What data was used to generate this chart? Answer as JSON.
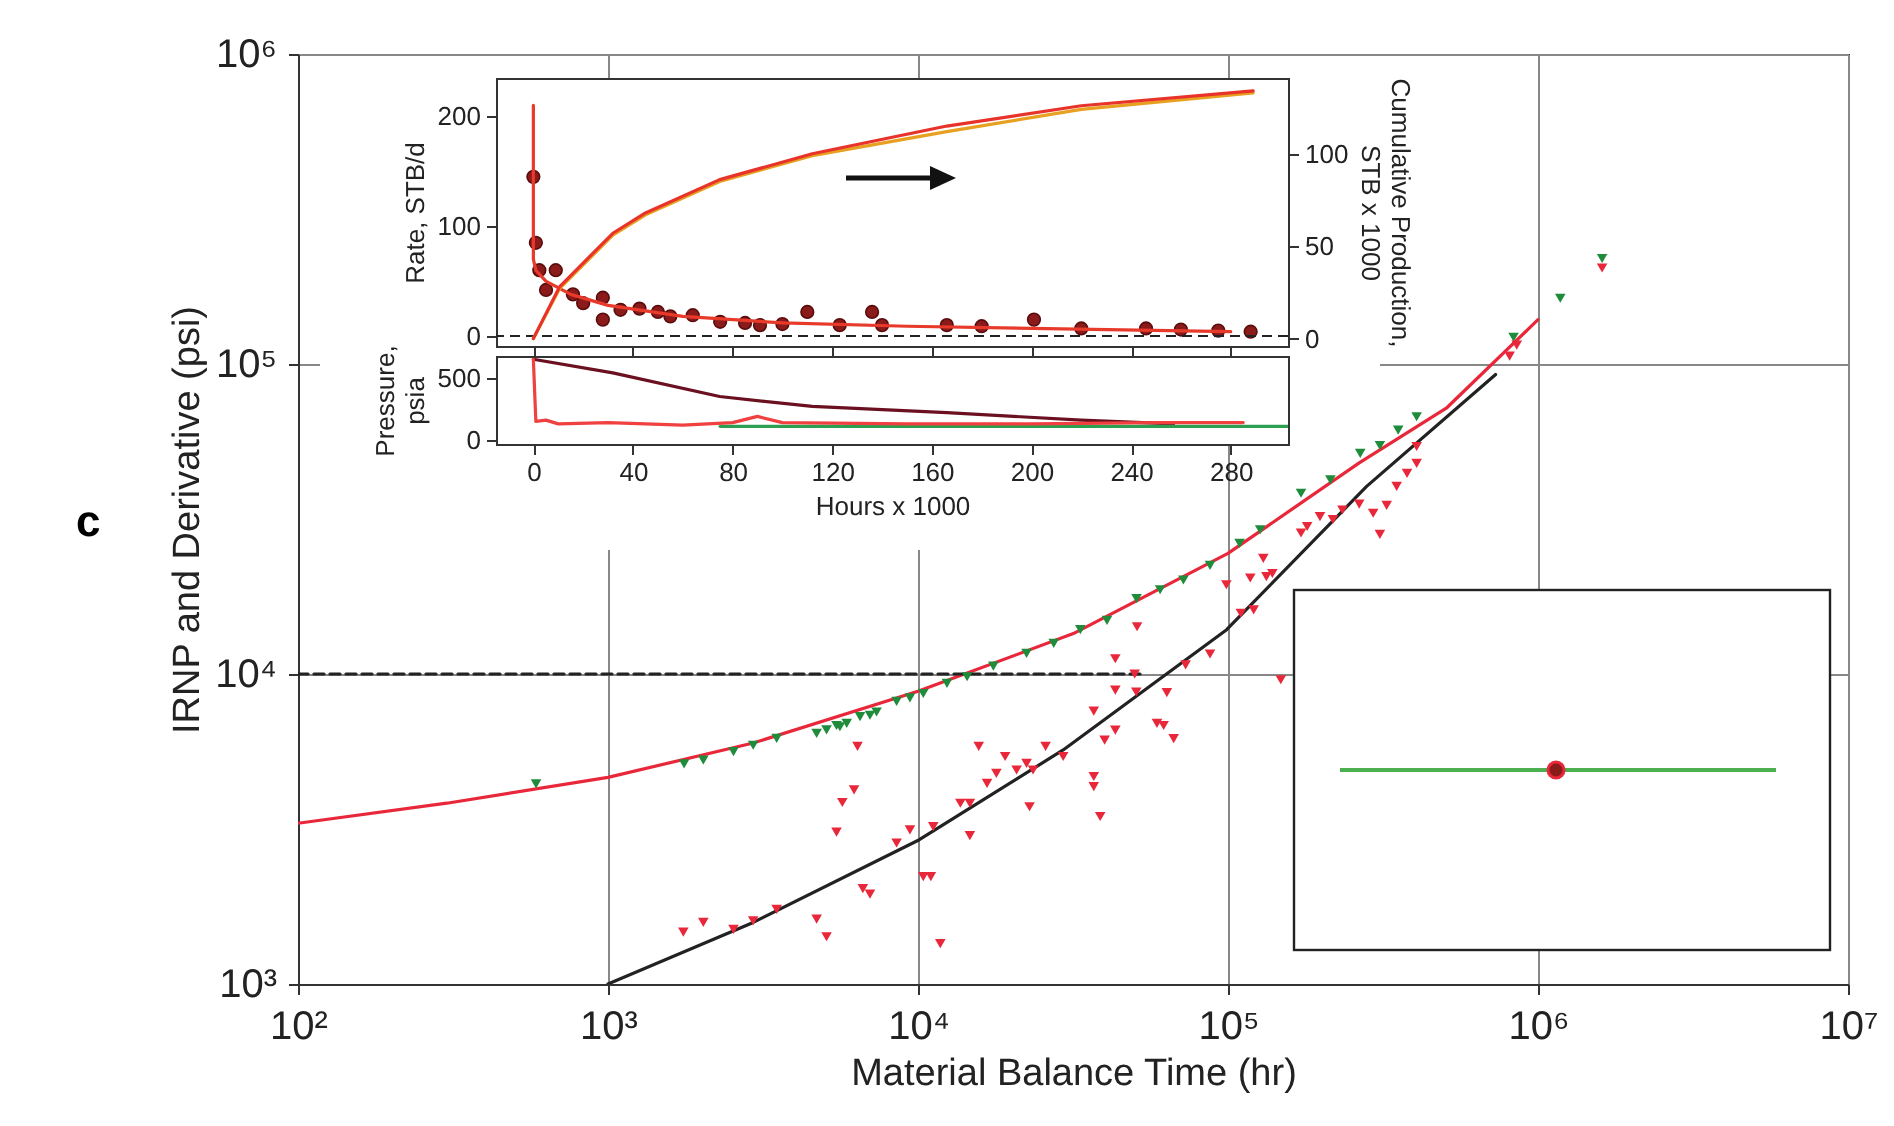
{
  "chart_data": [
    {
      "type": "scatter",
      "xlabel": "Material Balance Time (hr)",
      "ylabel": "IRNP and Derivative (psi)",
      "log": "xy",
      "grid": true,
      "annotations": [
        "c"
      ],
      "xlim": [
        100,
        10000000
      ],
      "ylim": [
        1000,
        1000000
      ],
      "xticks": [
        {
          "value": 100,
          "label": "10²"
        },
        {
          "value": 1000,
          "label": "10³"
        },
        {
          "value": 10000,
          "label": "10⁴"
        },
        {
          "value": 100000,
          "label": "10⁵"
        },
        {
          "value": 1000000,
          "label": "10⁶"
        },
        {
          "value": 10000000,
          "label": "10⁷"
        }
      ],
      "yticks": [
        {
          "value": 1000,
          "label": "10³"
        },
        {
          "value": 10000,
          "label": "10⁴"
        },
        {
          "value": 100000,
          "label": "10⁵"
        },
        {
          "value": 1000000,
          "label": "10⁶"
        }
      ],
      "series": [
        {
          "type": "line",
          "color": "#e8283a",
          "x": [
            100,
            302,
            1000,
            2940,
            10000,
            31700,
            100000,
            265000,
            506000,
            1000000
          ],
          "values": [
            3300,
            3830,
            4640,
            5990,
            8800,
            13500,
            24500,
            48000,
            72000,
            139000
          ]
        },
        {
          "type": "line",
          "color": "#222222",
          "x": [
            1000,
            2940,
            10100,
            29400,
            99000,
            280000,
            730000
          ],
          "values": [
            1000,
            1580,
            2920,
            5690,
            13900,
            40300,
            92500
          ]
        },
        {
          "type": "line",
          "color": "#222222",
          "line_style": "dashed",
          "x": [
            100,
            53000
          ],
          "values": [
            10000,
            10000
          ]
        },
        {
          "marker": "triangle",
          "color": "#1e8c3a",
          "x": [
            586,
            1760,
            2030,
            2540,
            2940,
            3500,
            4710,
            5070,
            5460,
            5600,
            5890,
            6500,
            7000,
            7350,
            8530,
            9420,
            10400,
            12400,
            14400,
            17500,
            22400,
            27400,
            33400,
            40700,
            50700,
            60400,
            71800,
            87500,
            109000,
            127000,
            172000,
            214000,
            267000,
            309000,
            354000,
            406000,
            834000,
            1180000,
            1610000
          ],
          "values": [
            4420,
            5130,
            5280,
            5620,
            5890,
            6200,
            6430,
            6600,
            6820,
            6760,
            6930,
            7290,
            7360,
            7540,
            8160,
            8370,
            8650,
            9330,
            9800,
            10600,
            11650,
            12550,
            13900,
            14900,
            17500,
            18700,
            20100,
            22400,
            26400,
            29200,
            38300,
            42300,
            51500,
            54600,
            61200,
            67600,
            122000,
            163000,
            219000
          ]
        },
        {
          "marker": "triangle",
          "color": "#e8283a",
          "x": [
            1750,
            2030,
            2540,
            2940,
            3500,
            4710,
            5070,
            5460,
            5700,
            6220,
            6380,
            6640,
            7000,
            8530,
            9420,
            10400,
            11000,
            11200,
            11800,
            13700,
            14700,
            14700,
            15700,
            16700,
            17900,
            19100,
            20800,
            22400,
            22900,
            23500,
            25800,
            29400,
            36900,
            36900,
            36900,
            38700,
            40000,
            43300,
            43300,
            43300,
            50000,
            50600,
            50900,
            59000,
            62000,
            63500,
            66800,
            73000,
            87500,
            98800,
            110000,
            118000,
            121000,
            130000,
            133000,
            139000,
            148000,
            172000,
            180000,
            198000,
            218000,
            234000,
            265000,
            294000,
            309000,
            325000,
            350000,
            378000,
            406000,
            406000,
            810000,
            854000,
            1610000
          ],
          "values": [
            1470,
            1580,
            1500,
            1600,
            1740,
            1620,
            1420,
            3090,
            3850,
            4230,
            5840,
            2030,
            1950,
            2850,
            3140,
            2220,
            2220,
            3220,
            1350,
            3830,
            3830,
            3010,
            5840,
            4440,
            4780,
            5420,
            4900,
            5150,
            3730,
            4900,
            5840,
            5420,
            7590,
            4670,
            4330,
            3470,
            6120,
            8870,
            11200,
            6590,
            10000,
            8750,
            14200,
            6930,
            6820,
            8710,
            6190,
            10700,
            11600,
            19400,
            15700,
            20400,
            16100,
            23600,
            20600,
            21100,
            9580,
            28500,
            29900,
            32200,
            31500,
            33800,
            35300,
            33000,
            28200,
            35000,
            40300,
            44400,
            47800,
            54200,
            106000,
            115000,
            204000
          ]
        }
      ]
    },
    {
      "type": "scatter",
      "ylabel": "Rate, STB/d",
      "y2label": "Cumulative Production, STB x 1000",
      "tick_labels": "y",
      "xlim": [
        -15,
        303
      ],
      "xticks": [
        0,
        40,
        80,
        120,
        160,
        200,
        240,
        280
      ],
      "ylim": [
        -9,
        235
      ],
      "yticks": [
        0,
        100,
        200
      ],
      "y2lim": [
        -4,
        141
      ],
      "y2ticks": [
        0,
        50,
        100
      ],
      "ref_lines": [
        {
          "axis": "y",
          "value": 0,
          "color": "#222222",
          "line_style": "dashed"
        }
      ],
      "series": [
        {
          "marker": "circle",
          "color": "#8b1a1a",
          "x": [
            0,
            1,
            2.4,
            5.1,
            9,
            15.9,
            20,
            27.9,
            27.9,
            35,
            42.6,
            50,
            55,
            64,
            75,
            85,
            91,
            100,
            110,
            123,
            136,
            140,
            166,
            180,
            201,
            220,
            246,
            260,
            275,
            288
          ],
          "values": [
            145,
            85,
            60,
            42,
            60,
            38,
            30,
            35,
            15,
            24,
            25,
            22,
            18,
            19,
            13,
            12,
            10,
            11,
            22,
            10,
            22,
            10,
            10,
            9,
            15,
            7,
            7,
            6,
            5,
            4
          ]
        },
        {
          "type": "line",
          "color": "#e83a2a",
          "x": [
            0,
            0,
            1,
            5,
            15,
            30,
            60,
            100,
            150,
            200,
            280
          ],
          "values": [
            210,
            70,
            60,
            50,
            38,
            28,
            18,
            12,
            9,
            7,
            4
          ]
        },
        {
          "type": "line",
          "axis": "y2",
          "color": "#e8a020",
          "x": [
            0,
            10.5,
            31.9,
            45,
            74.8,
            112,
            166,
            220,
            289
          ],
          "values": [
            0,
            27,
            56,
            67,
            85,
            99,
            112,
            124,
            133
          ]
        },
        {
          "type": "line",
          "axis": "y2",
          "color": "#e8332a",
          "x": [
            0,
            10.5,
            31.9,
            45,
            74.8,
            112,
            166,
            220,
            289
          ],
          "values": [
            0,
            28,
            57,
            68,
            86,
            100,
            115,
            126,
            134
          ]
        }
      ]
    },
    {
      "type": "line",
      "xlabel": "Hours x 1000",
      "ylabel": "Pressure, psia",
      "xlim": [
        -15,
        303
      ],
      "xticks": [
        0,
        40,
        80,
        120,
        160,
        200,
        240,
        280
      ],
      "ylim": [
        -32,
        676
      ],
      "yticks": [
        0,
        500
      ],
      "series": [
        {
          "color": "#6b1020",
          "x": [
            0,
            31.9,
            74.8,
            112,
            166,
            220,
            257
          ],
          "values": [
            650,
            540,
            350,
            270,
            220,
            160,
            130
          ]
        },
        {
          "color": "#2ca050",
          "x": [
            75,
            303
          ],
          "values": [
            110,
            110
          ]
        },
        {
          "color": "#f04040",
          "x": [
            0,
            1,
            5,
            10,
            30,
            60,
            80,
            90,
            100,
            150,
            200,
            250,
            285
          ],
          "values": [
            650,
            150,
            160,
            130,
            140,
            120,
            140,
            190,
            140,
            130,
            130,
            140,
            140
          ]
        }
      ]
    }
  ]
}
